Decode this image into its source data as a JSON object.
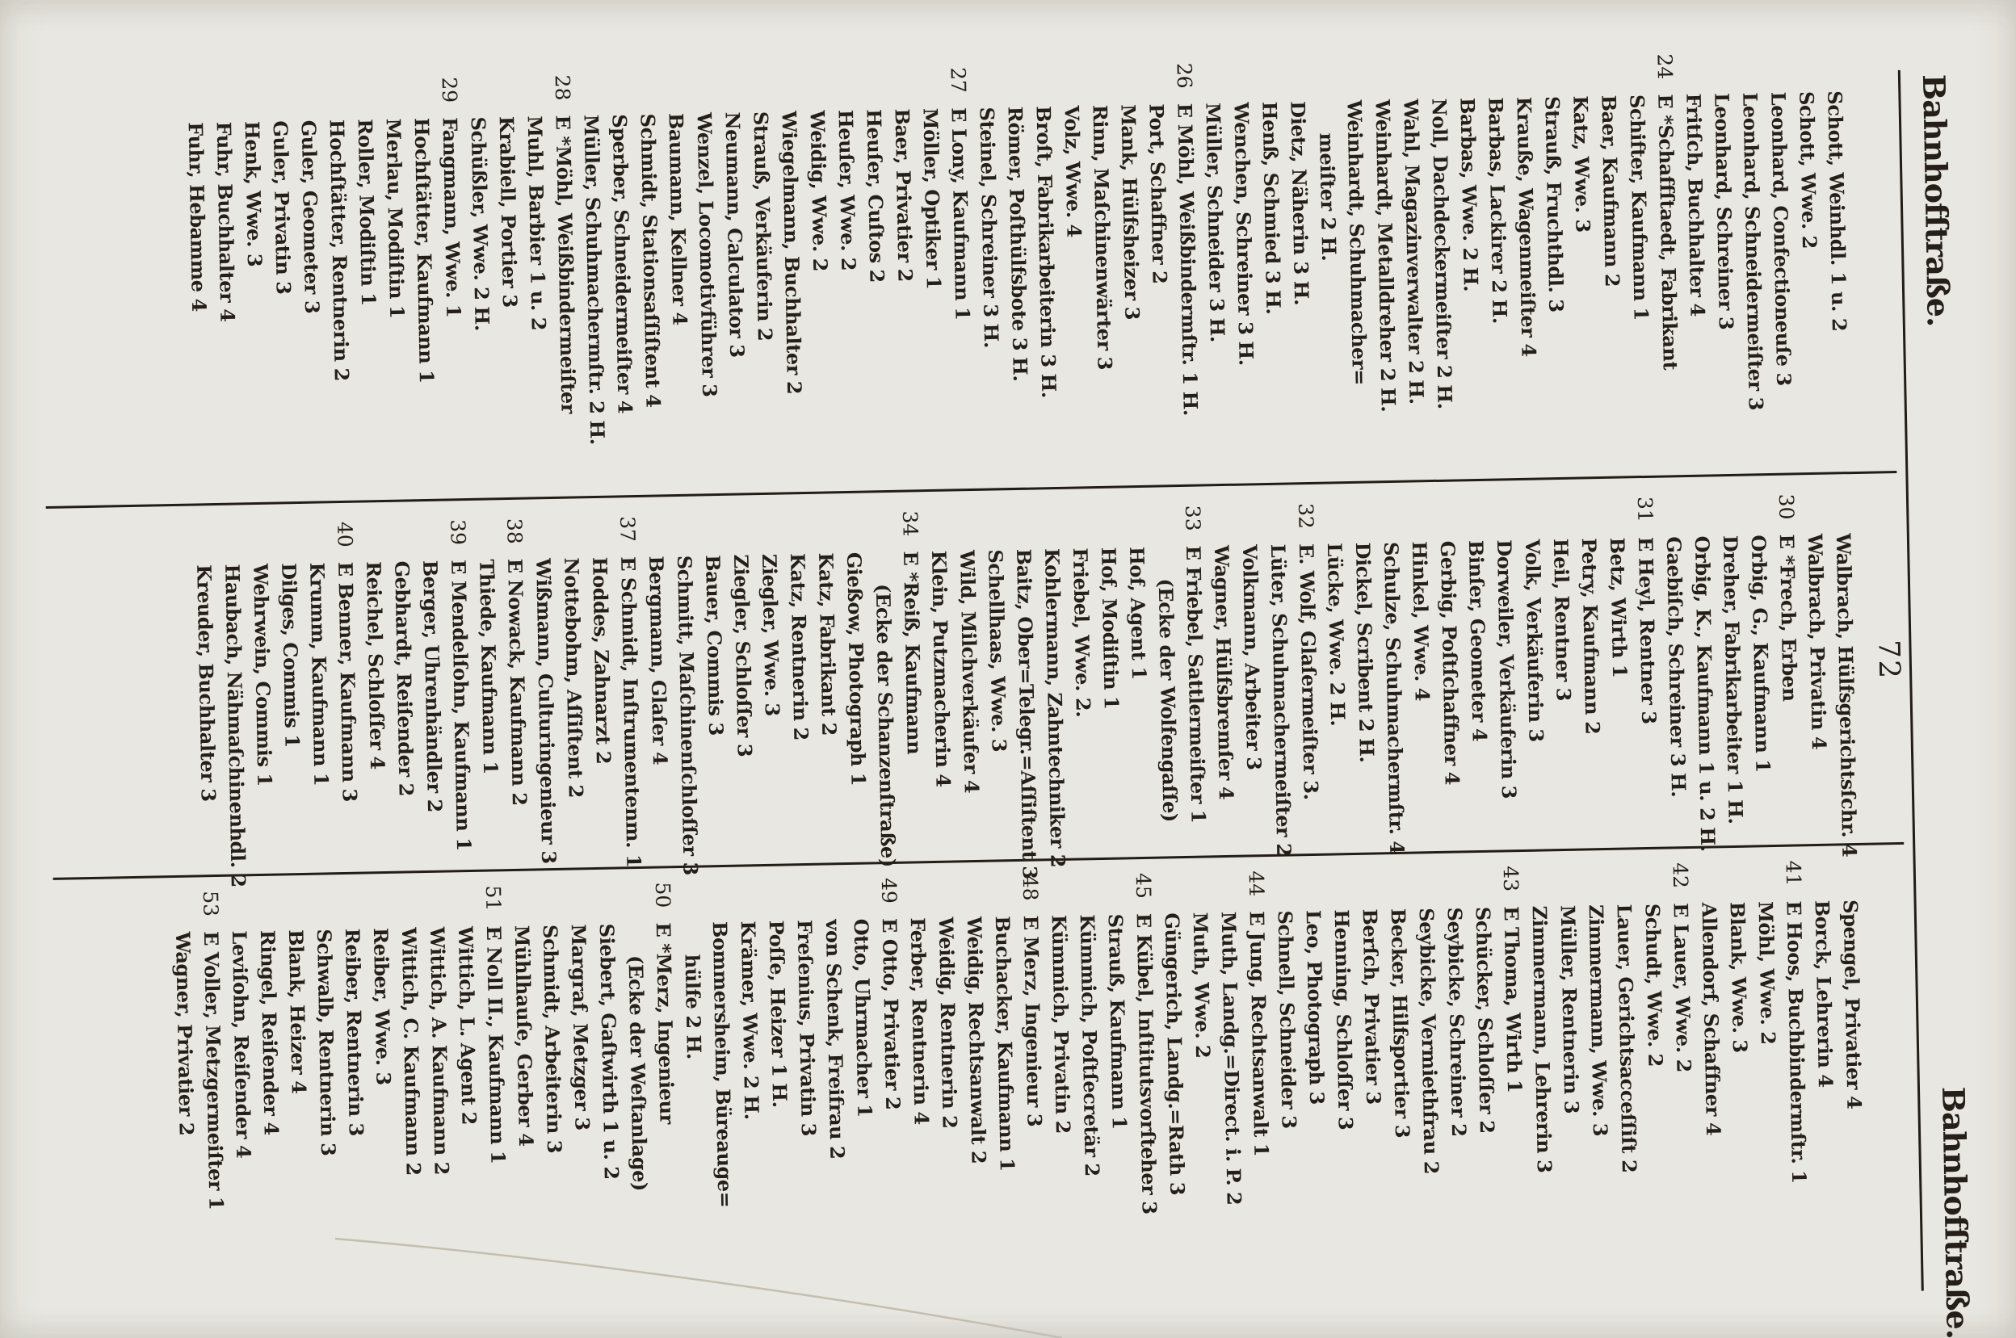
{
  "page": {
    "header": {
      "left": "Bahnhofſtraße.",
      "page_number": "72",
      "right": "Bahnhofſtraße."
    },
    "colors": {
      "paper": "#e9e7e1",
      "ink": "#241f18",
      "rule": "#221d16"
    },
    "columns": [
      {
        "lines": [
          {
            "t": "Schott, Weinhdl. 1 u. 2"
          },
          {
            "t": "Schott, Wwe. 2"
          },
          {
            "t": "Leonhard, Confectioneuſe 3"
          },
          {
            "t": "Leonhard, Schneidermeiſter 3"
          },
          {
            "t": "Leonhard, Schreiner 3"
          },
          {
            "t": "Fritſch, Buchhalter 4"
          },
          {
            "n": "24",
            "t": "E *Schaffſtaedt, Fabrikant"
          },
          {
            "t": "Schifter, Kaufmann 1"
          },
          {
            "t": "Baer, Kaufmann 2"
          },
          {
            "t": "Katz, Wwe. 3"
          },
          {
            "t": "Strauß, Fruchthdl. 3"
          },
          {
            "t": "Krauße, Wagenmeiſter 4"
          },
          {
            "t": "Barbas, Lackirer 2 H."
          },
          {
            "t": "Barbas, Wwe. 2 H."
          },
          {
            "t": "Noll, Dachdeckermeiſter 2 H."
          },
          {
            "t": "Wahl, Magazinverwalter 2 H."
          },
          {
            "t": "Weinhardt, Metalldreher 2 H."
          },
          {
            "t": "Weinhardt, Schuhmacher="
          },
          {
            "t": "meiſter 2 H.",
            "i": 1
          },
          {
            "t": "Dietz, Näherin 3 H."
          },
          {
            "t": "Henß, Schmied 3 H."
          },
          {
            "t": "Wenchen, Schreiner 3 H."
          },
          {
            "t": "Müller, Schneider 3 H."
          },
          {
            "n": "26",
            "t": "E Möhl, Weißbindermſtr. 1 H."
          },
          {
            "t": "Port, Schaffner 2"
          },
          {
            "t": "Mank, Hülfsheizer 3"
          },
          {
            "t": "Rinn, Maſchinenwärter 3"
          },
          {
            "t": "Volz, Wwe. 4"
          },
          {
            "t": "Broſt, Fabrikarbeiterin 3 H."
          },
          {
            "t": "Römer, Poſthülfsbote 3 H."
          },
          {
            "t": "Steinel, Schreiner 3 H."
          },
          {
            "n": "27",
            "t": "E Lony, Kaufmann 1"
          },
          {
            "t": "Möller, Optiker 1"
          },
          {
            "t": "Baer, Privatier 2"
          },
          {
            "t": "Heuſer, Cuſtos 2"
          },
          {
            "t": "Heuſer, Wwe. 2"
          },
          {
            "t": "Weidig, Wwe. 2"
          },
          {
            "t": "Wiegelmann, Buchhalter 2"
          },
          {
            "t": "Strauß, Verkäuferin 2"
          },
          {
            "t": "Neumann, Calculator 3"
          },
          {
            "t": "Wenzel, Locomotivführer 3"
          },
          {
            "t": "Baumann, Kellner 4"
          },
          {
            "t": "Schmidt, Stationsaſſiſtent 4"
          },
          {
            "t": "Sperber, Schneidermeiſter 4"
          },
          {
            "t": "Müller, Schuhmachermſtr. 2 H."
          },
          {
            "n": "28",
            "t": "E *Möhl, Weißbindermeiſter"
          },
          {
            "t": "Muhl, Barbier 1 u. 2"
          },
          {
            "t": "Krabiell, Portier 3"
          },
          {
            "t": "Schüßler, Wwe. 2 H."
          },
          {
            "n": "29",
            "t": "Fangmann, Wwe. 1"
          },
          {
            "t": "Hochſtätter, Kaufmann 1"
          },
          {
            "t": "Merlau, Modiſtin 1"
          },
          {
            "t": "Roller, Modiſtin 1"
          },
          {
            "t": "Hochſtätter, Rentnerin 2"
          },
          {
            "t": "Guler, Geometer 3"
          },
          {
            "t": "Guler, Privatin 3"
          },
          {
            "t": "Henk, Wwe. 3"
          },
          {
            "t": "Fuhr, Buchhalter 4"
          },
          {
            "t": "Fuhr, Hebamme 4"
          }
        ]
      },
      {
        "lines": [
          {
            "t": "Walbrach, Hülfsgerichtsſchr. 4"
          },
          {
            "t": "Walbrach, Privatin 4"
          },
          {
            "n": "30",
            "t": "E *Frech, Erben"
          },
          {
            "t": "Orbig, G., Kaufmann 1"
          },
          {
            "t": "Dreher, Fabrikarbeiter 1 H."
          },
          {
            "t": "Orbig, K., Kaufmann 1 u. 2 H."
          },
          {
            "t": "Gaebiſch, Schreiner 3 H."
          },
          {
            "n": "31",
            "t": "E Heyl, Rentner 3"
          },
          {
            "t": "Betz, Wirth 1"
          },
          {
            "t": "Petry, Kaufmann 2"
          },
          {
            "t": "Heil, Rentner 3"
          },
          {
            "t": "Volk, Verkäuferin 3"
          },
          {
            "t": "Dorweiler, Verkäuferin 3"
          },
          {
            "t": "Binſer, Geometer 4"
          },
          {
            "t": "Gerbig, Poſtſchaffner 4"
          },
          {
            "t": "Hinkel, Wwe. 4"
          },
          {
            "t": "Schulze, Schuhmachermſtr. 4"
          },
          {
            "t": "Dickel, Scribent 2 H."
          },
          {
            "t": "Lücke, Wwe. 2 H."
          },
          {
            "n": "32",
            "t": "E. Wolf, Glaſermeiſter 3."
          },
          {
            "t": "Lüter, Schuhmachermeiſter 2"
          },
          {
            "t": "Volkmann, Arbeiter 3"
          },
          {
            "t": "Wagner, Hülfsbremſer 4"
          },
          {
            "n": "33",
            "t": "E Friebel, Sattlermeiſter 1"
          },
          {
            "t": "(Ecke der Wolfengaſſe)",
            "i": 1
          },
          {
            "t": "Hof, Agent 1"
          },
          {
            "t": "Hof, Modiſtin 1"
          },
          {
            "t": "Friebel, Wwe. 2."
          },
          {
            "t": "Kohlermann, Zahntechniker 2"
          },
          {
            "t": "Baitz, Ober=Telegr.=Aſſiſtent 3"
          },
          {
            "t": "Schellhaas, Wwe. 3"
          },
          {
            "t": "Wild, Milchverkäufer 4"
          },
          {
            "t": "Klein, Putzmacherin 4"
          },
          {
            "n": "34",
            "t": "E *Reiß, Kaufmann"
          },
          {
            "t": "(Ecke der Schanzenſtraße)",
            "i": 1
          },
          {
            "t": "Gießow, Photograph 1"
          },
          {
            "t": "Katz, Fabrikant 2"
          },
          {
            "t": "Katz, Rentnerin 2"
          },
          {
            "t": "Ziegler, Wwe. 3"
          },
          {
            "t": "Ziegler, Schloſſer 3"
          },
          {
            "t": "Bauer, Commis 3"
          },
          {
            "t": "Schmitt, Maſchinenſchloſſer 3"
          },
          {
            "t": "Bergmann, Glaſer 4"
          },
          {
            "n": "37",
            "t": "E Schmidt, Inſtrumentenm. 1"
          },
          {
            "t": "Hoddes, Zahnarzt 2"
          },
          {
            "t": "Nottebohm, Aſſiſtent 2"
          },
          {
            "t": "Wißmann, Culturingenieur 3"
          },
          {
            "n": "38",
            "t": "E Nowack, Kaufmann 2"
          },
          {
            "t": "Thiede, Kaufmann 1"
          },
          {
            "n": "39",
            "t": "E Mendelſohn, Kaufmann 1"
          },
          {
            "t": "Berger, Uhrenhändler 2"
          },
          {
            "t": "Gebhardt, Reiſender 2"
          },
          {
            "t": "Reichel, Schloſſer 4"
          },
          {
            "n": "40",
            "t": "E Benner, Kaufmann 3"
          },
          {
            "t": "Krumm, Kaufmann 1"
          },
          {
            "t": "Dilges, Commis 1"
          },
          {
            "t": "Wehrwein, Commis 1"
          },
          {
            "t": "Haubach, Nähmaſchinenhdl. 2"
          },
          {
            "t": "Kreuder, Buchhalter 3"
          }
        ]
      },
      {
        "lines": [
          {
            "t": "Spengel, Privatier 4"
          },
          {
            "t": "Borck, Lehrerin 4"
          },
          {
            "n": "41",
            "t": "E Hoos, Buchbindermſtr. 1"
          },
          {
            "t": "Möhl, Wwe. 2"
          },
          {
            "t": "Blank, Wwe. 3"
          },
          {
            "t": "Allendorf, Schaffner 4"
          },
          {
            "n": "42",
            "t": "E Lauer, Wwe. 2"
          },
          {
            "t": "Schudt, Wwe. 2"
          },
          {
            "t": "Lauer, Gerichtsacceſſiſt 2"
          },
          {
            "t": "Zimmermann, Wwe. 3"
          },
          {
            "t": "Müller, Rentnerin 3"
          },
          {
            "t": "Zimmermann, Lehrerin 3"
          },
          {
            "n": "43",
            "t": "E Thoma, Wirth 1"
          },
          {
            "t": "Schücker, Schloſſer 2"
          },
          {
            "t": "Seybicke, Schreiner 2"
          },
          {
            "t": "Seybicke, Vermiethfrau 2"
          },
          {
            "t": "Becker, Hilfsportier 3"
          },
          {
            "t": "Berſch, Privatier 3"
          },
          {
            "t": "Henning, Schloſſer 3"
          },
          {
            "t": "Leo, Photograph 3"
          },
          {
            "t": "Schnell, Schneider 3"
          },
          {
            "n": "44",
            "t": "E Jung, Rechtsanwalt 1"
          },
          {
            "t": "Muth, Landg.=Direct. i. P. 2"
          },
          {
            "t": "Muth, Wwe. 2"
          },
          {
            "t": "Güngerich, Landg.=Rath 3"
          },
          {
            "n": "45",
            "t": "E Kübel, Inſtitutsvorſteher 3"
          },
          {
            "t": "Strauß, Kaufmann 1"
          },
          {
            "t": "Kümmich, Poſtſecretär 2"
          },
          {
            "t": "Kümmich, Privatin 2"
          },
          {
            "n": "48",
            "t": "E Merz, Ingenieur 3"
          },
          {
            "t": "Buchacker, Kaufmann 1"
          },
          {
            "t": "Weidig, Rechtsanwalt 2"
          },
          {
            "t": "Weidig, Rentnerin 2"
          },
          {
            "t": "Ferber, Rentnerin 4"
          },
          {
            "n": "49",
            "t": "E Otto, Privatier 2"
          },
          {
            "t": "Otto, Uhrmacher 1"
          },
          {
            "t": "von Schenk, Freifrau 2"
          },
          {
            "t": "Freſenius, Privatin 3"
          },
          {
            "t": "Poſſe, Heizer 1 H."
          },
          {
            "t": "Krämer, Wwe. 2 H."
          },
          {
            "t": "Bommersheim, Büreauge="
          },
          {
            "t": "hülfe 2 H.",
            "i": 1
          },
          {
            "n": "50",
            "t": "E *Merz, Ingenieur"
          },
          {
            "t": "(Ecke der Weſtanlage)",
            "i": 1
          },
          {
            "t": "Siebert, Gaſtwirth 1 u. 2"
          },
          {
            "t": "Margraf, Metzger 3"
          },
          {
            "t": "Schmidt, Arbeiterin 3"
          },
          {
            "t": "Mühlhauſe, Gerber 4"
          },
          {
            "n": "51",
            "t": "E Noll II., Kaufmann 1"
          },
          {
            "t": "Wittich, L. Agent 2"
          },
          {
            "t": "Wittich, A. Kaufmann 2"
          },
          {
            "t": "Wittich, C. Kaufmann 2"
          },
          {
            "t": "Reiber, Wwe. 3"
          },
          {
            "t": "Reiber, Rentnerin 3"
          },
          {
            "t": "Schwalb, Rentnerin 3"
          },
          {
            "t": "Blank, Heizer 4"
          },
          {
            "t": "Ringel, Reiſender 4"
          },
          {
            "t": "Leviſohn, Reiſender 4"
          },
          {
            "n": "53",
            "t": "E Voller, Metzgermeiſter 1"
          },
          {
            "t": "Wagner, Privatier 2"
          }
        ]
      }
    ]
  }
}
